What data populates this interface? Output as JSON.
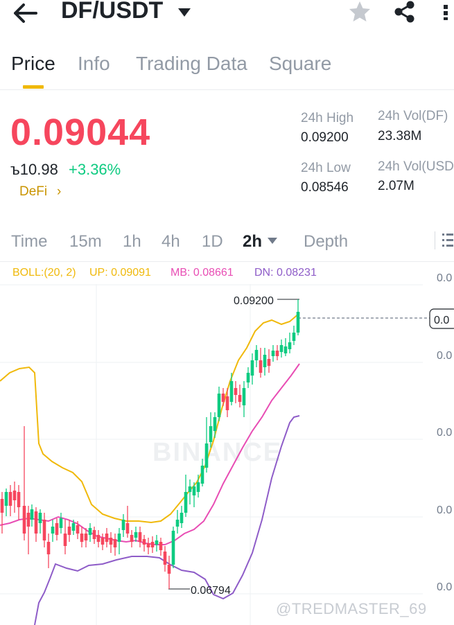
{
  "header": {
    "pair": "DF/USDT",
    "icons": [
      "back-arrow-icon",
      "caret-down-icon",
      "star-icon",
      "share-icon",
      "more-icon"
    ]
  },
  "tabs": [
    {
      "label": "Price",
      "active": true
    },
    {
      "label": "Info",
      "active": false
    },
    {
      "label": "Trading Data",
      "active": false
    },
    {
      "label": "Square",
      "active": false
    }
  ],
  "price": {
    "last": "0.09044",
    "fiat": "ъ10.98",
    "change": "+3.36%",
    "tag": "DeFi",
    "tag_arrow": "›"
  },
  "stats": {
    "high_label": "24h High",
    "high_value": "0.09200",
    "low_label": "24h Low",
    "low_value": "0.08546",
    "vol_base_label": "24h Vol(DF)",
    "vol_base_value": "23.38M",
    "vol_quote_label": "24h Vol(USD",
    "vol_quote_value": "2.07M"
  },
  "intervals": [
    {
      "label": "Time",
      "active": false
    },
    {
      "label": "15m",
      "active": false
    },
    {
      "label": "1h",
      "active": false
    },
    {
      "label": "4h",
      "active": false
    },
    {
      "label": "1D",
      "active": false
    },
    {
      "label": "2h",
      "active": true
    },
    {
      "label": "Depth",
      "active": false
    }
  ],
  "indicator": {
    "name": "BOLL:(20, 2)",
    "up": "UP: 0.09091",
    "mb": "MB: 0.08661",
    "dn": "DN: 0.08231",
    "colors": {
      "name": "#f0b90b",
      "up": "#f0b90b",
      "mb": "#e84db4",
      "dn": "#8e5cc8"
    }
  },
  "chart": {
    "high_marker": "0.09200",
    "low_marker": "0.06794",
    "last_marker": "0.0",
    "axis_ticks": [
      "0.0",
      "0.0",
      "0.0",
      "0.0",
      "0.0"
    ],
    "brand_watermark": "BINANCE",
    "credit_watermark": "@TREDMASTER_69"
  },
  "colors": {
    "up": "#0ecb81",
    "down": "#f6465d",
    "accent": "#f0b90b"
  }
}
